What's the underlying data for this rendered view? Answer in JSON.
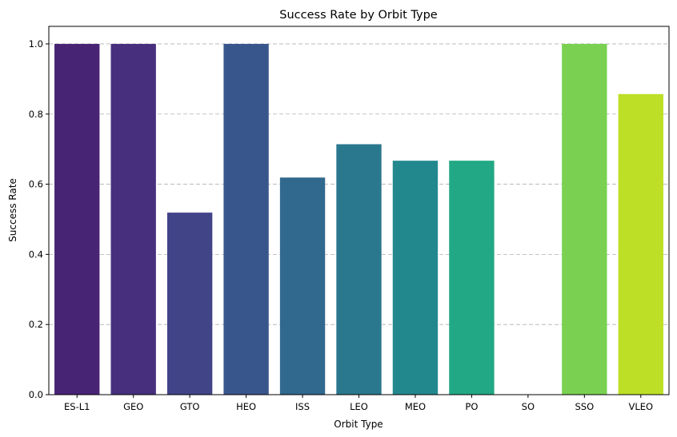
{
  "chart_data": {
    "type": "bar",
    "title": "Success Rate by Orbit Type",
    "xlabel": "Orbit Type",
    "ylabel": "Success Rate",
    "categories": [
      "ES-L1",
      "GEO",
      "GTO",
      "HEO",
      "ISS",
      "LEO",
      "MEO",
      "PO",
      "SO",
      "SSO",
      "VLEO"
    ],
    "values": [
      1.0,
      1.0,
      0.519,
      1.0,
      0.619,
      0.714,
      0.667,
      0.667,
      0.0,
      1.0,
      0.857
    ],
    "colors": [
      "#482475",
      "#472f7d",
      "#414487",
      "#39568c",
      "#31688e",
      "#2a788e",
      "#23888e",
      "#22a884",
      "#44bf70",
      "#7ad151",
      "#bddf26"
    ],
    "ylim": [
      0,
      1.05
    ],
    "yticks": [
      0.0,
      0.2,
      0.4,
      0.6,
      0.8,
      1.0
    ],
    "ytick_labels": [
      "0.0",
      "0.2",
      "0.4",
      "0.6",
      "0.8",
      "1.0"
    ],
    "grid": "y-dashed",
    "legend": "none"
  }
}
